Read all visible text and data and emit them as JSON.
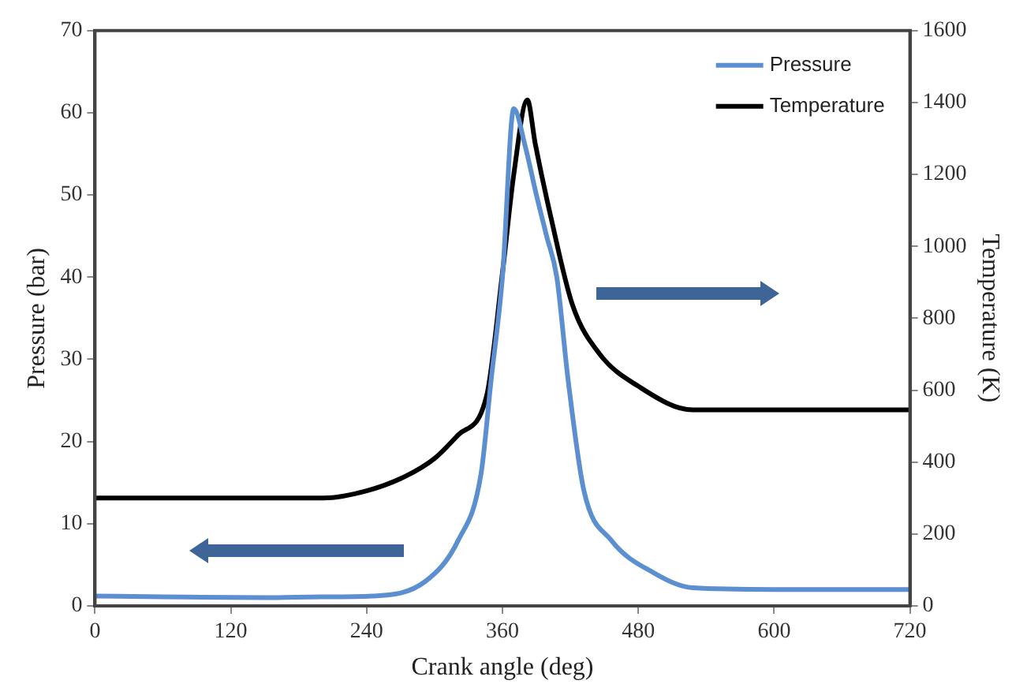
{
  "chart_data": {
    "type": "line",
    "xlabel": "Crank angle (deg)",
    "ylabel": "Pressure (bar)",
    "y2label": "Temperature (K)",
    "xlim": [
      0,
      720
    ],
    "xticks": [
      0,
      120,
      240,
      360,
      480,
      600,
      720
    ],
    "ylim": [
      0,
      70
    ],
    "yticks": [
      0,
      10,
      20,
      30,
      40,
      50,
      60,
      70
    ],
    "y2lim": [
      0,
      1600
    ],
    "y2ticks": [
      0,
      200,
      400,
      600,
      800,
      1000,
      1200,
      1400,
      1600
    ],
    "legend": "top right",
    "grid": false,
    "marker": "none",
    "line_style": "solid",
    "series": [
      {
        "name": "Pressure",
        "color": "#5b8fd0",
        "axis": "y",
        "x": [
          0,
          60,
          150,
          200,
          245,
          292,
          321,
          341,
          350,
          360,
          370,
          380,
          390,
          399,
          408,
          418,
          432,
          456,
          494,
          528,
          600,
          720
        ],
        "values": [
          1.2,
          1.1,
          1.0,
          1.1,
          1.2,
          3,
          8,
          16,
          27.5,
          40,
          60.5,
          56,
          50,
          45,
          40,
          27.5,
          14,
          8,
          4,
          2.2,
          2,
          2
        ]
      },
      {
        "name": "Temperature",
        "color": "#000000",
        "axis": "y2",
        "x": [
          0,
          150,
          202,
          240,
          274,
          300,
          321,
          346,
          360,
          370,
          382,
          389,
          403,
          422,
          446,
          480,
          528,
          600,
          720
        ],
        "values": [
          300,
          300,
          300,
          320,
          360,
          410,
          476,
          584,
          926,
          1200,
          1407,
          1285,
          1078,
          836,
          700,
          611,
          545,
          545,
          545
        ]
      }
    ]
  }
}
